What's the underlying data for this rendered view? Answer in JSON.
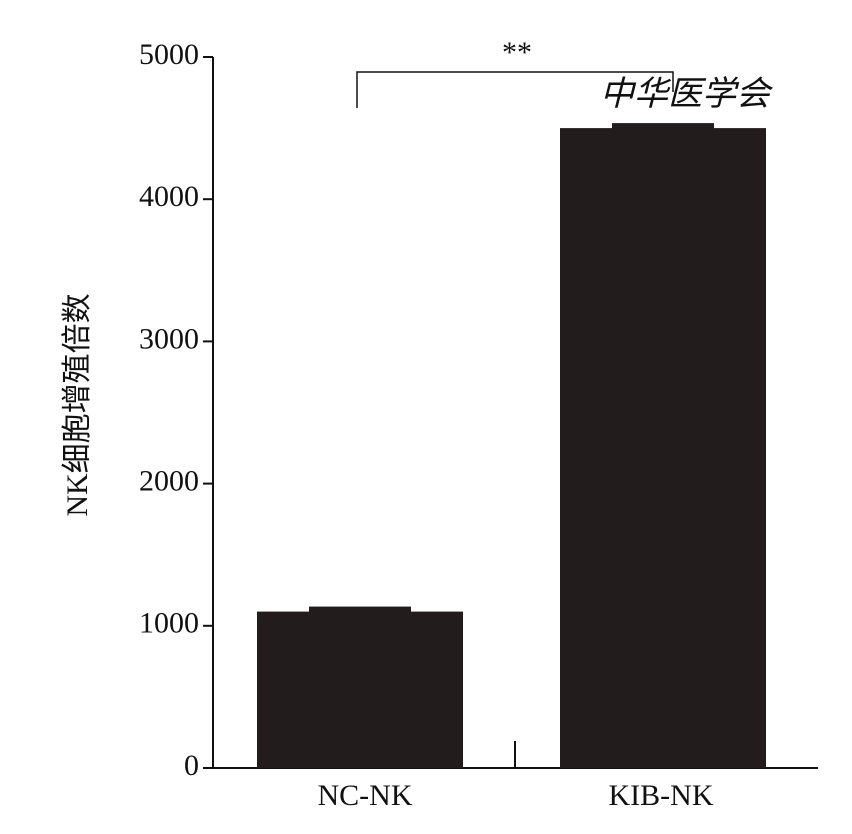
{
  "chart_data": {
    "type": "bar",
    "categories": [
      "NC-NK",
      "KIB-NK"
    ],
    "values": [
      1100,
      4500
    ],
    "ylabel": "NK细胞增殖倍数",
    "xlabel": "",
    "ylim": [
      0,
      5000
    ],
    "yticks": [
      0,
      1000,
      2000,
      3000,
      4000,
      5000
    ],
    "bar_color": "#221c1c",
    "significance": {
      "label": "**",
      "between": [
        "NC-NK",
        "KIB-NK"
      ]
    },
    "watermark": "中华医学会"
  }
}
